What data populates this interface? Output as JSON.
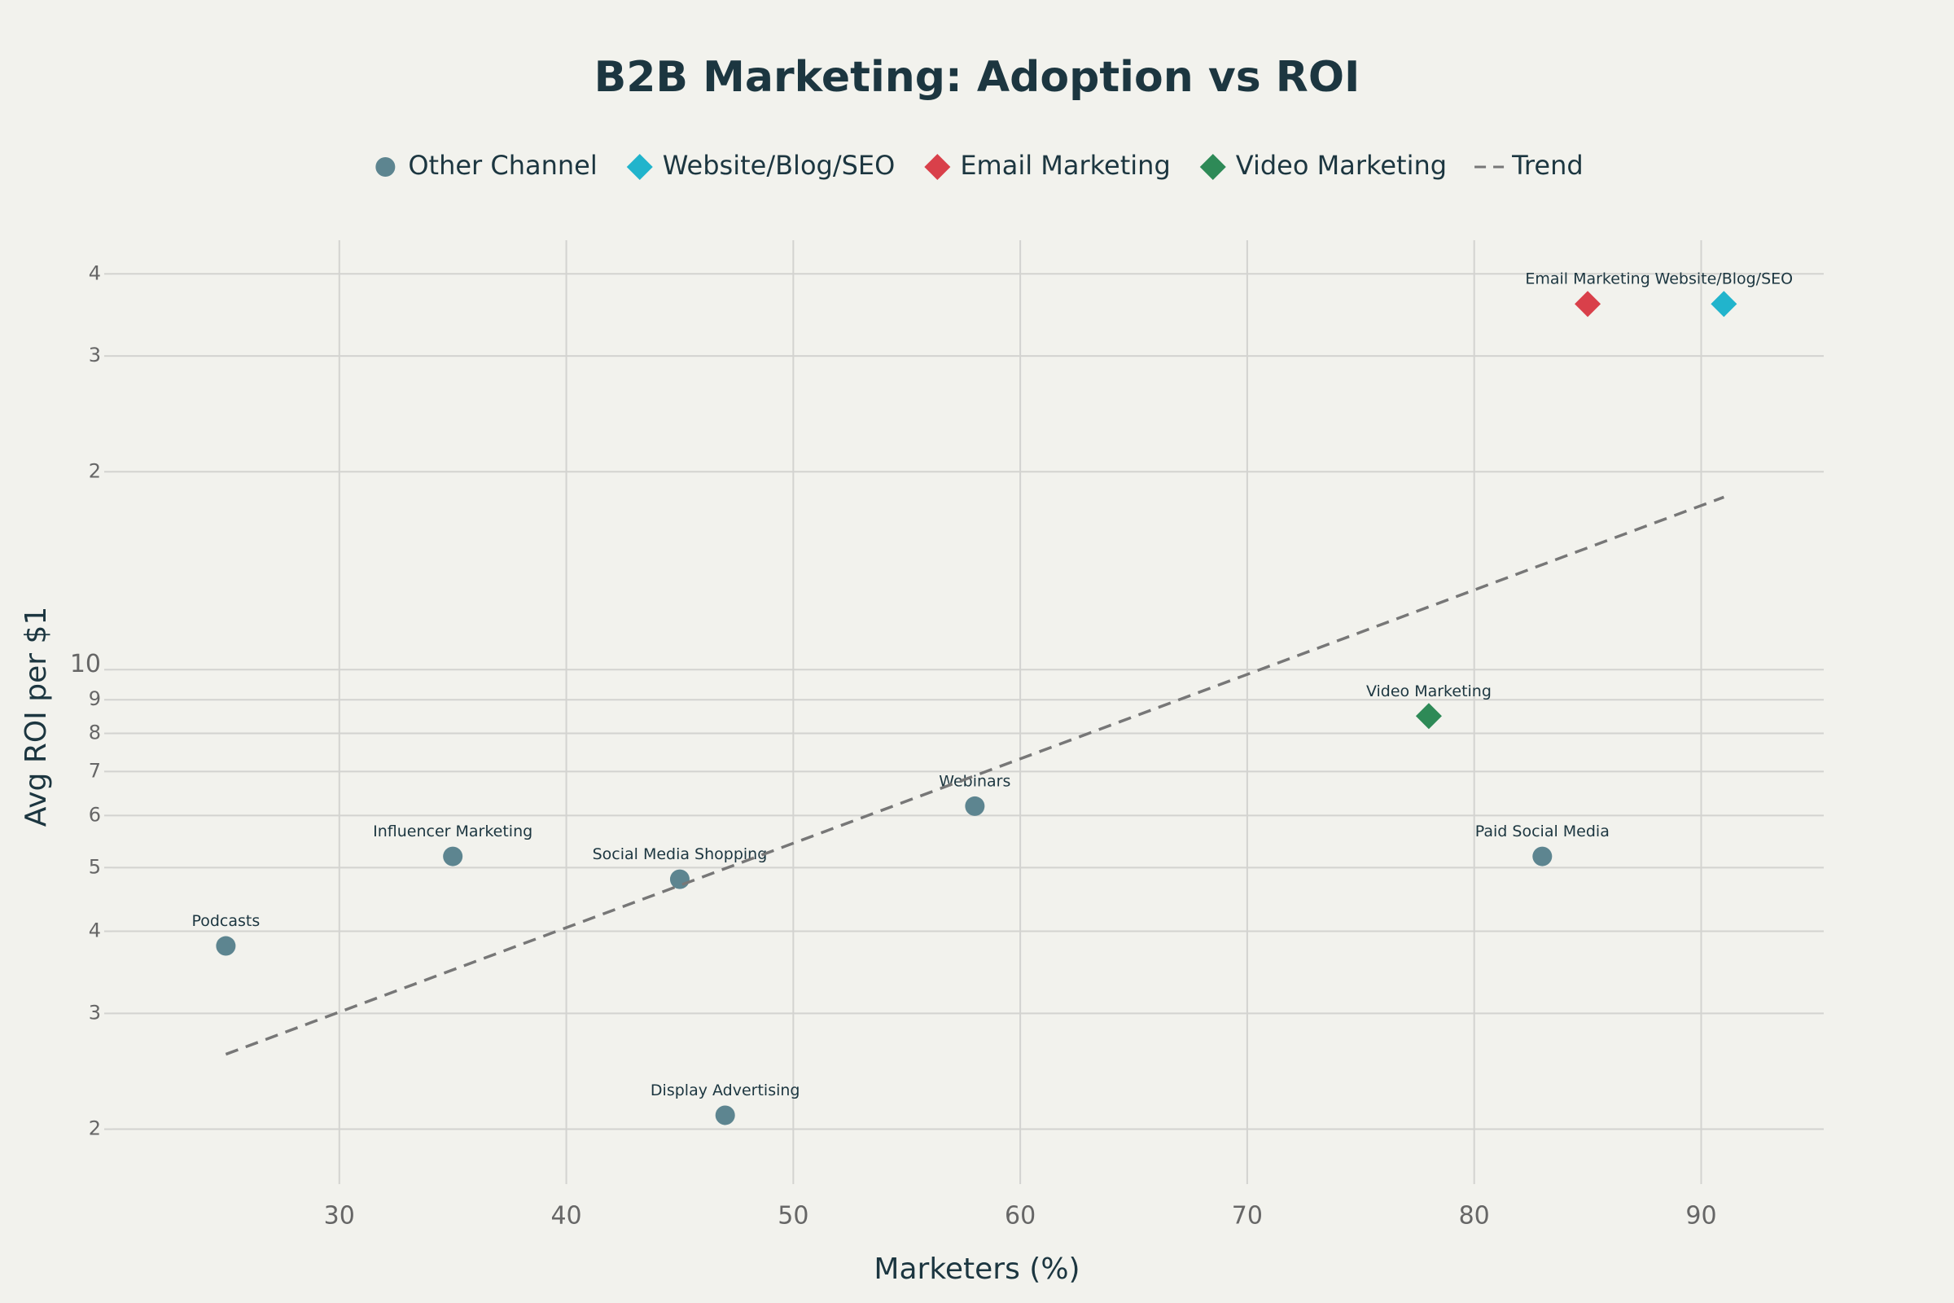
{
  "chart_data": {
    "type": "scatter",
    "title": "B2B Marketing: Adoption vs ROI",
    "x_label": "Marketers (%)",
    "y_label": "Avg ROI per $1",
    "xlim": [
      20,
      95.4
    ],
    "xticks": [
      30,
      40,
      50,
      60,
      70,
      80,
      90
    ],
    "ylim": [
      1.65,
      45
    ],
    "y_scale": "log",
    "yticks": [
      2,
      3,
      4,
      5,
      6,
      7,
      8,
      9,
      10,
      {
        "value": 20,
        "label": "2"
      },
      {
        "value": 30,
        "label": "3"
      },
      {
        "value": 40,
        "label": "4"
      }
    ],
    "grid": true,
    "legend_position": "top",
    "series": [
      {
        "name": "Other Channel",
        "color": "#5d8590",
        "marker": "circle",
        "x": [
          25,
          35,
          45,
          47,
          58,
          83
        ],
        "values": [
          3.8,
          5.2,
          4.8,
          2.1,
          6.2,
          5.2
        ],
        "labels": [
          "Podcasts",
          "Influencer Marketing",
          "Social Media Shopping",
          "Display Advertising",
          "Webinars",
          "Paid Social Media"
        ]
      },
      {
        "name": "Website/Blog/SEO",
        "color": "#21b4cc",
        "marker": "diamond",
        "x": [
          91
        ],
        "values": [
          36
        ],
        "labels": [
          "Website/Blog/SEO"
        ]
      },
      {
        "name": "Email Marketing",
        "color": "#d9404a",
        "marker": "diamond",
        "x": [
          85
        ],
        "values": [
          36
        ],
        "labels": [
          "Email Marketing"
        ]
      },
      {
        "name": "Video Marketing",
        "color": "#2e8a57",
        "marker": "diamond",
        "x": [
          78
        ],
        "values": [
          8.5
        ],
        "labels": [
          "Video Marketing"
        ]
      },
      {
        "name": "Trend",
        "color": "#777777",
        "marker": "dash-line",
        "x": [
          25,
          91
        ],
        "values": [
          2.6,
          18.3
        ]
      }
    ]
  }
}
